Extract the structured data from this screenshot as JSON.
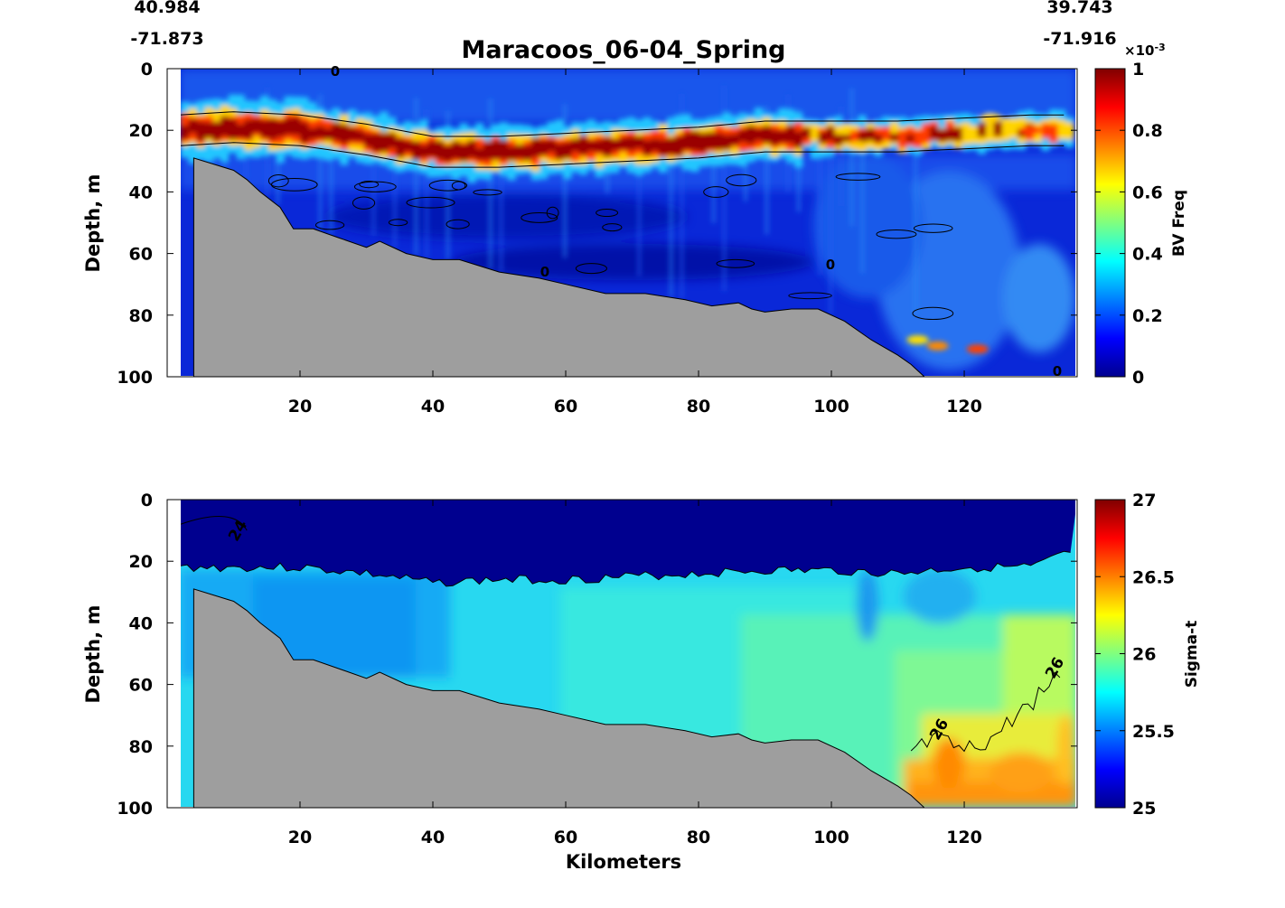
{
  "figure": {
    "title": "Maracoos_06-04_Spring",
    "start_lat": "40.984",
    "start_lon": "-71.873",
    "end_lat": "39.743",
    "end_lon": "-71.916",
    "xlabel": "Kilometers"
  },
  "chart_data": [
    {
      "type": "heatmap",
      "variable": "BV Freq",
      "ylabel": "Depth, m",
      "xlim": [
        0,
        137
      ],
      "ylim": [
        0,
        100
      ],
      "y_reversed": true,
      "x_ticks": [
        20,
        40,
        60,
        80,
        100,
        120
      ],
      "y_ticks": [
        0,
        20,
        40,
        60,
        80,
        100
      ],
      "colorbar": {
        "label": "BV Freq",
        "range": [
          0,
          1
        ],
        "multiplier": "×10⁻³",
        "multiplier_base": "×10",
        "multiplier_exp": "-3",
        "ticks": [
          "0",
          "0.2",
          "0.4",
          "0.6",
          "0.8",
          "1"
        ],
        "colormap": "jet"
      },
      "contour_labels": [
        "0"
      ],
      "high_band_depth_m": {
        "x": [
          2,
          10,
          20,
          30,
          40,
          50,
          60,
          70,
          80,
          90,
          100,
          110,
          120,
          130,
          135
        ],
        "depth": [
          20,
          19,
          20,
          23,
          27,
          27,
          26,
          25,
          24,
          22,
          22,
          22,
          21,
          20,
          20
        ]
      },
      "bathymetry": {
        "x": [
          4,
          10,
          12,
          14,
          17,
          19,
          22,
          26,
          30,
          32,
          36,
          40,
          44,
          50,
          56,
          60,
          66,
          72,
          78,
          82,
          86,
          88,
          90,
          94,
          98,
          102,
          106,
          110,
          112,
          114
        ],
        "depth": [
          29,
          33,
          36,
          40,
          45,
          52,
          52,
          55,
          58,
          56,
          60,
          62,
          62,
          66,
          68,
          70,
          73,
          73,
          75,
          77,
          76,
          78,
          79,
          78,
          78,
          82,
          88,
          93,
          96,
          100
        ]
      }
    },
    {
      "type": "heatmap",
      "variable": "Sigma-t",
      "ylabel": "Depth, m",
      "xlabel": "Kilometers",
      "xlim": [
        0,
        137
      ],
      "ylim": [
        0,
        100
      ],
      "y_reversed": true,
      "x_ticks": [
        20,
        40,
        60,
        80,
        100,
        120
      ],
      "y_ticks": [
        0,
        20,
        40,
        60,
        80,
        100
      ],
      "colorbar": {
        "label": "Sigma-t",
        "range": [
          25,
          27
        ],
        "ticks": [
          "25",
          "25.5",
          "26",
          "26.5",
          "27"
        ],
        "colormap": "jet"
      },
      "contour_labels": [
        "24",
        "26",
        "26"
      ],
      "pycnocline_depth_m": {
        "x": [
          2,
          10,
          20,
          30,
          40,
          50,
          60,
          70,
          80,
          90,
          100,
          110,
          120,
          130,
          135
        ],
        "depth": [
          22,
          22,
          22,
          24,
          27,
          26,
          26,
          25,
          24,
          23,
          23,
          24,
          22,
          22,
          18
        ]
      },
      "isopycnal_26_depth_m": {
        "x": [
          112,
          116,
          120,
          124,
          128,
          132,
          135
        ],
        "depth": [
          82,
          78,
          82,
          78,
          70,
          62,
          55
        ]
      },
      "bathymetry": {
        "x": [
          4,
          10,
          12,
          14,
          17,
          19,
          22,
          26,
          30,
          32,
          36,
          40,
          44,
          50,
          56,
          60,
          66,
          72,
          78,
          82,
          86,
          88,
          90,
          94,
          98,
          102,
          106,
          110,
          112,
          114
        ],
        "depth": [
          29,
          33,
          36,
          40,
          45,
          52,
          52,
          55,
          58,
          56,
          60,
          62,
          62,
          66,
          68,
          70,
          73,
          73,
          75,
          77,
          76,
          78,
          79,
          78,
          78,
          82,
          88,
          93,
          96,
          100
        ]
      }
    }
  ]
}
